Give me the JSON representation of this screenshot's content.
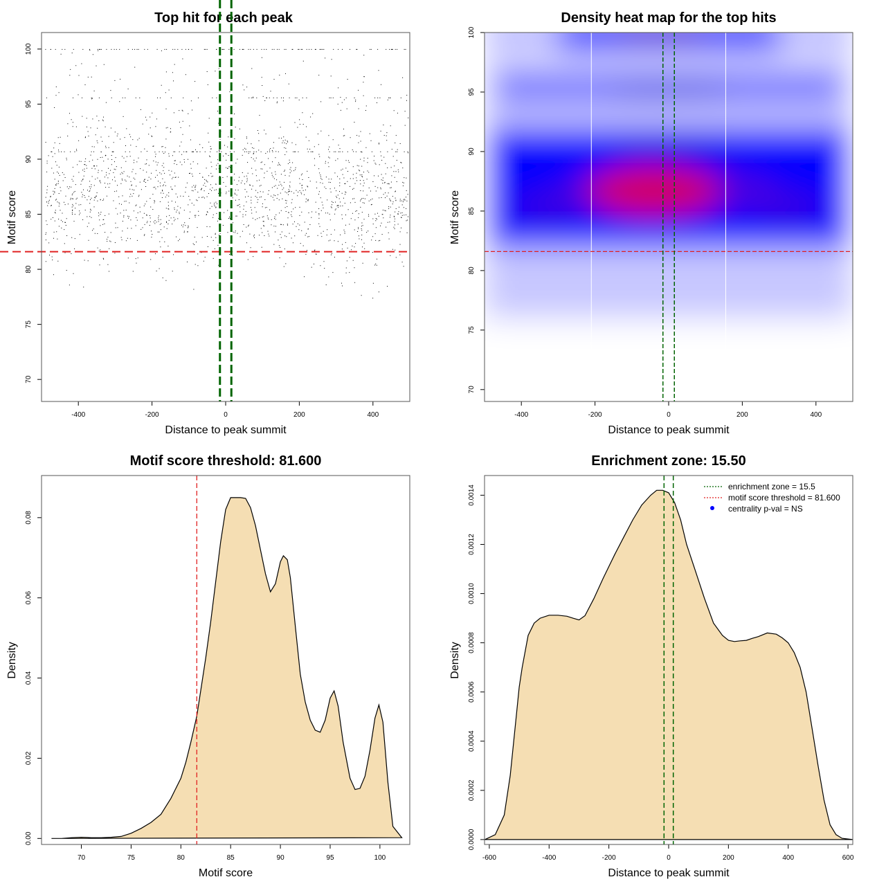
{
  "chart_data": [
    {
      "panel": "scatter",
      "type": "scatter",
      "title": "Top hit for each peak",
      "xlabel": "Distance to peak summit",
      "ylabel": "Motif score",
      "xlim": [
        -500,
        500
      ],
      "ylim": [
        68,
        101.5
      ],
      "xticks": [
        -400,
        -200,
        0,
        200,
        400
      ],
      "yticks": [
        70,
        75,
        80,
        85,
        90,
        95,
        100
      ],
      "threshold_y": 81.6,
      "zone_x": [
        -15.5,
        15.5
      ],
      "colors": {
        "points": "#000000",
        "threshold": "#e02020",
        "zone": "#006400"
      },
      "point_structure": {
        "horizontal_bands_at_score": [
          100,
          95.6,
          90.7
        ],
        "bulk_score_range": [
          82,
          92
        ],
        "center_score": 87,
        "approx_points": 7000
      }
    },
    {
      "panel": "heatmap",
      "type": "heatmap",
      "title": "Density heat map for the top hits",
      "xlabel": "Distance to peak summit",
      "ylabel": "Motif score",
      "xlim": [
        -500,
        500
      ],
      "ylim": [
        69,
        100
      ],
      "xticks": [
        -400,
        -200,
        0,
        200,
        400
      ],
      "yticks": [
        70,
        75,
        80,
        85,
        90,
        95,
        100
      ],
      "threshold_y": 81.6,
      "zone_x": [
        -15.5,
        15.5
      ],
      "density_peaks": [
        {
          "x": -40,
          "y": 86.7,
          "level": "high"
        },
        {
          "x": -330,
          "y": 85.5,
          "level": "medium"
        },
        {
          "x": 330,
          "y": 85.5,
          "level": "medium"
        },
        {
          "x": -20,
          "y": 100,
          "level": "medium"
        },
        {
          "x": 0,
          "y": 95.2,
          "level": "medium"
        },
        {
          "x": 0,
          "y": 90.5,
          "level": "medium"
        }
      ],
      "colors": {
        "low": "#ffffff",
        "mid": "#0000ff",
        "high": "#ff0000"
      }
    },
    {
      "panel": "score-density",
      "type": "area",
      "title": "Motif score threshold: 81.600",
      "xlabel": "Motif score",
      "ylabel": "Density",
      "xlim": [
        66,
        103
      ],
      "ylim": [
        -0.0015,
        0.0905
      ],
      "xticks": [
        70,
        75,
        80,
        85,
        90,
        95,
        100
      ],
      "yticks": [
        0,
        0.02,
        0.04,
        0.06,
        0.08
      ],
      "ytick_labels": [
        "0.00",
        "0.02",
        "0.04",
        "0.06",
        "0.08"
      ],
      "threshold_x": 81.6,
      "x": [
        67,
        68,
        69,
        70,
        71,
        72,
        73,
        74,
        75,
        76,
        77,
        78,
        79,
        80,
        80.5,
        81,
        81.6,
        82,
        82.5,
        83,
        83.5,
        84,
        84.5,
        85,
        85.5,
        86,
        86.5,
        87,
        87.5,
        88,
        88.5,
        89,
        89.5,
        90,
        90.3,
        90.7,
        91,
        91.5,
        92,
        92.5,
        93,
        93.5,
        94,
        94.5,
        95,
        95.4,
        95.8,
        96.3,
        97,
        97.5,
        98,
        98.5,
        99,
        99.5,
        99.9,
        100.3,
        100.8,
        101.3,
        102.2
      ],
      "y": [
        0.0,
        0.0,
        0.0002,
        0.0003,
        0.0002,
        0.0002,
        0.0003,
        0.0005,
        0.0013,
        0.0025,
        0.004,
        0.006,
        0.01,
        0.015,
        0.019,
        0.024,
        0.0305,
        0.037,
        0.045,
        0.054,
        0.064,
        0.074,
        0.082,
        0.085,
        0.085,
        0.085,
        0.0848,
        0.0825,
        0.078,
        0.072,
        0.066,
        0.0615,
        0.0635,
        0.069,
        0.0705,
        0.0695,
        0.065,
        0.053,
        0.041,
        0.034,
        0.0295,
        0.027,
        0.0265,
        0.0295,
        0.035,
        0.0368,
        0.033,
        0.024,
        0.015,
        0.0122,
        0.0125,
        0.0155,
        0.022,
        0.03,
        0.0333,
        0.029,
        0.014,
        0.003,
        0.0002
      ],
      "colors": {
        "fill": "#f5deb3",
        "line": "#000000",
        "threshold": "#e02020"
      }
    },
    {
      "panel": "distance-density",
      "type": "area",
      "title": "Enrichment zone: 15.50",
      "xlabel": "Distance to peak summit",
      "ylabel": "Density",
      "xlim": [
        -616,
        616
      ],
      "ylim": [
        -2e-05,
        0.00148
      ],
      "xticks": [
        -600,
        -400,
        -200,
        0,
        200,
        400,
        600
      ],
      "yticks": [
        0,
        0.0002,
        0.0004,
        0.0006,
        0.0008,
        0.001,
        0.0012,
        0.0014
      ],
      "ytick_labels": [
        "0.0000",
        "0.0002",
        "0.0004",
        "0.0006",
        "0.0008",
        "0.0010",
        "0.0012",
        "0.0014"
      ],
      "zone_x": [
        -15.5,
        15.5
      ],
      "x": [
        -615,
        -580,
        -550,
        -530,
        -510,
        -500,
        -490,
        -470,
        -450,
        -430,
        -400,
        -370,
        -340,
        -320,
        -300,
        -280,
        -250,
        -220,
        -200,
        -180,
        -150,
        -120,
        -90,
        -60,
        -40,
        -20,
        0,
        20,
        40,
        60,
        90,
        120,
        150,
        180,
        200,
        220,
        240,
        260,
        280,
        300,
        330,
        360,
        380,
        400,
        420,
        440,
        460,
        480,
        500,
        520,
        540,
        560,
        580,
        615
      ],
      "y": [
        0.0,
        2e-05,
        0.0001,
        0.00026,
        0.0005,
        0.00062,
        0.0007,
        0.00083,
        0.00088,
        0.0009,
        0.000912,
        0.000912,
        0.000908,
        0.0009,
        0.000893,
        0.00091,
        0.00098,
        0.00106,
        0.00111,
        0.00116,
        0.00123,
        0.0013,
        0.00136,
        0.0014,
        0.00142,
        0.00142,
        0.00141,
        0.00137,
        0.0013,
        0.0012,
        0.00109,
        0.00098,
        0.00088,
        0.00083,
        0.00081,
        0.000805,
        0.000808,
        0.00081,
        0.000818,
        0.000825,
        0.00084,
        0.000835,
        0.00082,
        0.0008,
        0.00076,
        0.0007,
        0.0006,
        0.00045,
        0.0003,
        0.00016,
        6e-05,
        2e-05,
        5e-06,
        0.0
      ],
      "colors": {
        "fill": "#f5deb3",
        "line": "#000000",
        "zone": "#006400"
      },
      "legend": [
        {
          "label": "enrichment zone = 15.5",
          "style": "dotted-line",
          "color": "#006400"
        },
        {
          "label": "motif score threshold = 81.600",
          "style": "dotted-line",
          "color": "#e02020"
        },
        {
          "label": "centrality p-val = NS",
          "style": "point",
          "color": "#0000ff"
        }
      ],
      "legend_position": "top-right"
    }
  ]
}
